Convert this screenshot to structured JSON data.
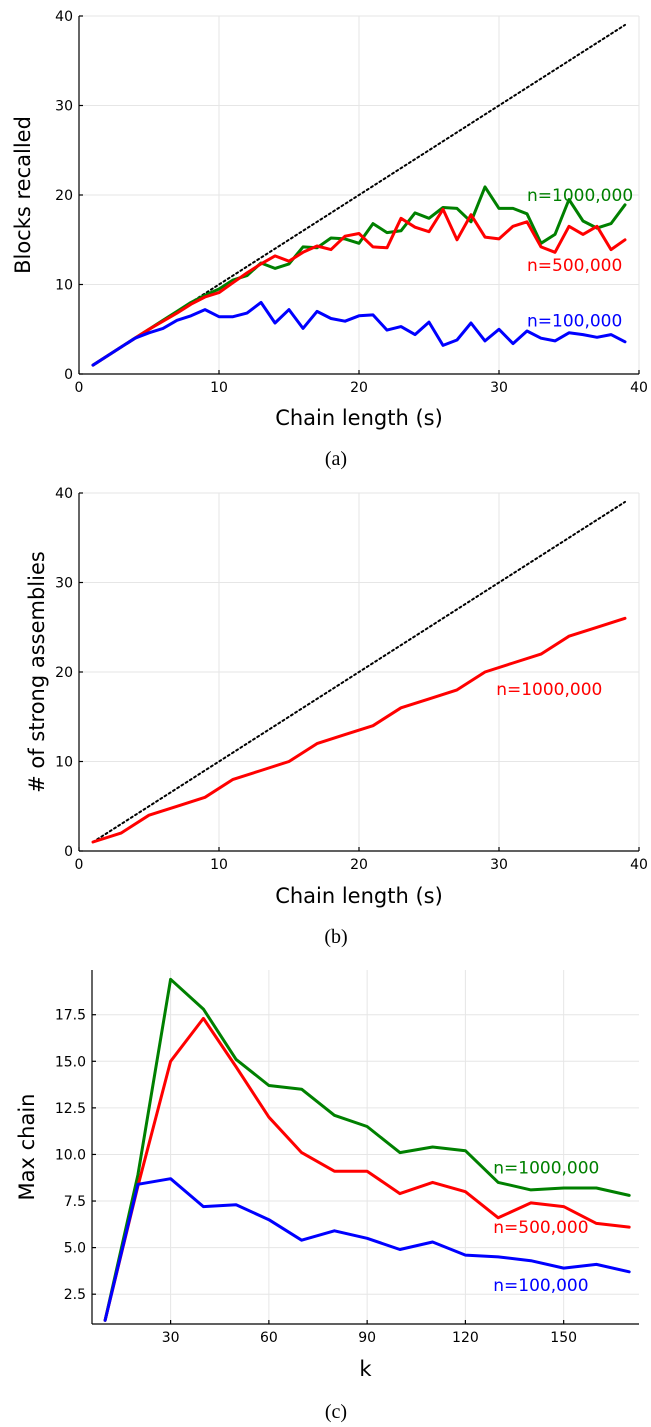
{
  "chart_data": [
    {
      "type": "line",
      "caption": "(a)",
      "xlabel": "Chain length (s)",
      "ylabel": "Blocks recalled",
      "xlim": [
        0,
        40
      ],
      "ylim": [
        0,
        40
      ],
      "xticks": [
        0,
        10,
        20,
        30,
        40
      ],
      "yticks": [
        0,
        10,
        20,
        30,
        40
      ],
      "xtick_labels": [
        "0",
        "10",
        "20",
        "30",
        "40"
      ],
      "ytick_labels": [
        "0",
        "10",
        "20",
        "30",
        "40"
      ],
      "grid": true,
      "reference_line": {
        "x": [
          1,
          39
        ],
        "y": [
          1,
          39
        ],
        "style": "dotted",
        "color": "#000000"
      },
      "series": [
        {
          "name": "n=1000,000",
          "color": "#008000",
          "x": [
            1,
            2,
            3,
            4,
            5,
            6,
            7,
            8,
            9,
            10,
            11,
            12,
            13,
            14,
            15,
            16,
            17,
            18,
            19,
            20,
            21,
            22,
            23,
            24,
            25,
            26,
            27,
            28,
            29,
            30,
            31,
            32,
            33,
            34,
            35,
            36,
            37,
            38,
            39
          ],
          "y": [
            1,
            2,
            3,
            4,
            5,
            6,
            7,
            8,
            8.8,
            9.5,
            10.5,
            11,
            12.4,
            11.8,
            12.3,
            14.2,
            14.1,
            15.2,
            15.1,
            14.6,
            16.8,
            15.8,
            16,
            18,
            17.4,
            18.6,
            18.5,
            17,
            20.9,
            18.5,
            18.5,
            17.9,
            14.6,
            15.6,
            19.5,
            17.1,
            16.3,
            16.8,
            18.9
          ]
        },
        {
          "name": "n=500,000",
          "color": "#ff0000",
          "x": [
            1,
            2,
            3,
            4,
            5,
            6,
            7,
            8,
            9,
            10,
            11,
            12,
            13,
            14,
            15,
            16,
            17,
            18,
            19,
            20,
            21,
            22,
            23,
            24,
            25,
            26,
            27,
            28,
            29,
            30,
            31,
            32,
            33,
            34,
            35,
            36,
            37,
            38,
            39
          ],
          "y": [
            1,
            2,
            3,
            4,
            5,
            5.9,
            6.8,
            7.8,
            8.6,
            9.1,
            10.2,
            11.3,
            12.3,
            13.2,
            12.6,
            13.6,
            14.3,
            13.9,
            15.4,
            15.7,
            14.2,
            14.1,
            17.4,
            16.4,
            15.9,
            18.4,
            15,
            17.8,
            15.3,
            15.1,
            16.5,
            17,
            14.2,
            13.6,
            16.5,
            15.6,
            16.5,
            13.9,
            15
          ]
        },
        {
          "name": "n=100,000",
          "color": "#0000ff",
          "x": [
            1,
            2,
            3,
            4,
            5,
            6,
            7,
            8,
            9,
            10,
            11,
            12,
            13,
            14,
            15,
            16,
            17,
            18,
            19,
            20,
            21,
            22,
            23,
            24,
            25,
            26,
            27,
            28,
            29,
            30,
            31,
            32,
            33,
            34,
            35,
            36,
            37,
            38,
            39
          ],
          "y": [
            1,
            2,
            3,
            4,
            4.6,
            5.1,
            6,
            6.5,
            7.2,
            6.4,
            6.4,
            6.8,
            8,
            5.7,
            7.2,
            5.1,
            7,
            6.2,
            5.9,
            6.5,
            6.6,
            4.9,
            5.3,
            4.4,
            5.8,
            3.2,
            3.8,
            5.7,
            3.7,
            5,
            3.4,
            4.8,
            4,
            3.7,
            4.6,
            4.4,
            4.1,
            4.4,
            3.6
          ]
        }
      ],
      "annotations": [
        {
          "text": "n=1000,000",
          "x": 32,
          "y": 20,
          "color": "#008000"
        },
        {
          "text": "n=500,000",
          "x": 32,
          "y": 12.2,
          "color": "#ff0000"
        },
        {
          "text": "n=100,000",
          "x": 32,
          "y": 6,
          "color": "#0000ff"
        }
      ]
    },
    {
      "type": "line",
      "caption": "(b)",
      "xlabel": "Chain length (s)",
      "ylabel": "# of strong assemblies",
      "xlim": [
        0,
        40
      ],
      "ylim": [
        0,
        40
      ],
      "xticks": [
        0,
        10,
        20,
        30,
        40
      ],
      "yticks": [
        0,
        10,
        20,
        30,
        40
      ],
      "xtick_labels": [
        "0",
        "10",
        "20",
        "30",
        "40"
      ],
      "ytick_labels": [
        "0",
        "10",
        "20",
        "30",
        "40"
      ],
      "grid": true,
      "reference_line": {
        "x": [
          1,
          39
        ],
        "y": [
          1,
          39
        ],
        "style": "dotted",
        "color": "#000000"
      },
      "series": [
        {
          "name": "n=1000,000",
          "color": "#ff0000",
          "x": [
            1,
            3,
            5,
            7,
            9,
            11,
            13,
            15,
            17,
            19,
            21,
            23,
            25,
            27,
            29,
            31,
            33,
            35,
            37,
            39
          ],
          "y": [
            1,
            2,
            4,
            5,
            6,
            8,
            9,
            10,
            12,
            13,
            14,
            16,
            17,
            18,
            20,
            21,
            22,
            24,
            25,
            26
          ]
        }
      ],
      "annotations": [
        {
          "text": "n=1000,000",
          "x": 29.8,
          "y": 18.1,
          "color": "#ff0000"
        }
      ]
    },
    {
      "type": "line",
      "caption": "(c)",
      "xlabel": "k",
      "ylabel": "Max chain",
      "xlim": [
        6,
        173
      ],
      "ylim": [
        0.9,
        19.9
      ],
      "xticks": [
        30,
        60,
        90,
        120,
        150
      ],
      "yticks": [
        2.5,
        5.0,
        7.5,
        10.0,
        12.5,
        15.0,
        17.5
      ],
      "xtick_labels": [
        "30",
        "60",
        "90",
        "120",
        "150"
      ],
      "ytick_labels": [
        "2.5",
        "5.0",
        "7.5",
        "10.0",
        "12.5",
        "15.0",
        "17.5"
      ],
      "grid": true,
      "series": [
        {
          "name": "n=1000,000",
          "color": "#008000",
          "x": [
            10,
            20,
            30,
            40,
            50,
            60,
            70,
            80,
            90,
            100,
            110,
            120,
            130,
            140,
            150,
            160,
            170
          ],
          "y": [
            1.1,
            8.9,
            19.4,
            17.8,
            15.1,
            13.7,
            13.5,
            12.1,
            11.5,
            10.1,
            10.4,
            10.2,
            8.5,
            8.1,
            8.2,
            8.2,
            7.8
          ]
        },
        {
          "name": "n=500,000",
          "color": "#ff0000",
          "x": [
            10,
            20,
            30,
            40,
            50,
            60,
            70,
            80,
            90,
            100,
            110,
            120,
            130,
            140,
            150,
            160,
            170
          ],
          "y": [
            1.1,
            8.3,
            15,
            17.3,
            14.7,
            12,
            10.1,
            9.1,
            9.1,
            7.9,
            8.5,
            8,
            6.6,
            7.4,
            7.2,
            6.3,
            6.1
          ]
        },
        {
          "name": "n=100,000",
          "color": "#0000ff",
          "x": [
            10,
            20,
            30,
            40,
            50,
            60,
            70,
            80,
            90,
            100,
            110,
            120,
            130,
            140,
            150,
            160,
            170
          ],
          "y": [
            1.1,
            8.4,
            8.7,
            7.2,
            7.3,
            6.5,
            5.4,
            5.9,
            5.5,
            4.9,
            5.3,
            4.6,
            4.5,
            4.3,
            3.9,
            4.1,
            3.7
          ]
        }
      ],
      "annotations": [
        {
          "text": "n=1000,000",
          "x": 128.5,
          "y": 9.3,
          "color": "#008000"
        },
        {
          "text": "n=500,000",
          "x": 128.5,
          "y": 6.1,
          "color": "#ff0000"
        },
        {
          "text": "n=100,000",
          "x": 128.5,
          "y": 3.0,
          "color": "#0000ff"
        }
      ]
    }
  ]
}
